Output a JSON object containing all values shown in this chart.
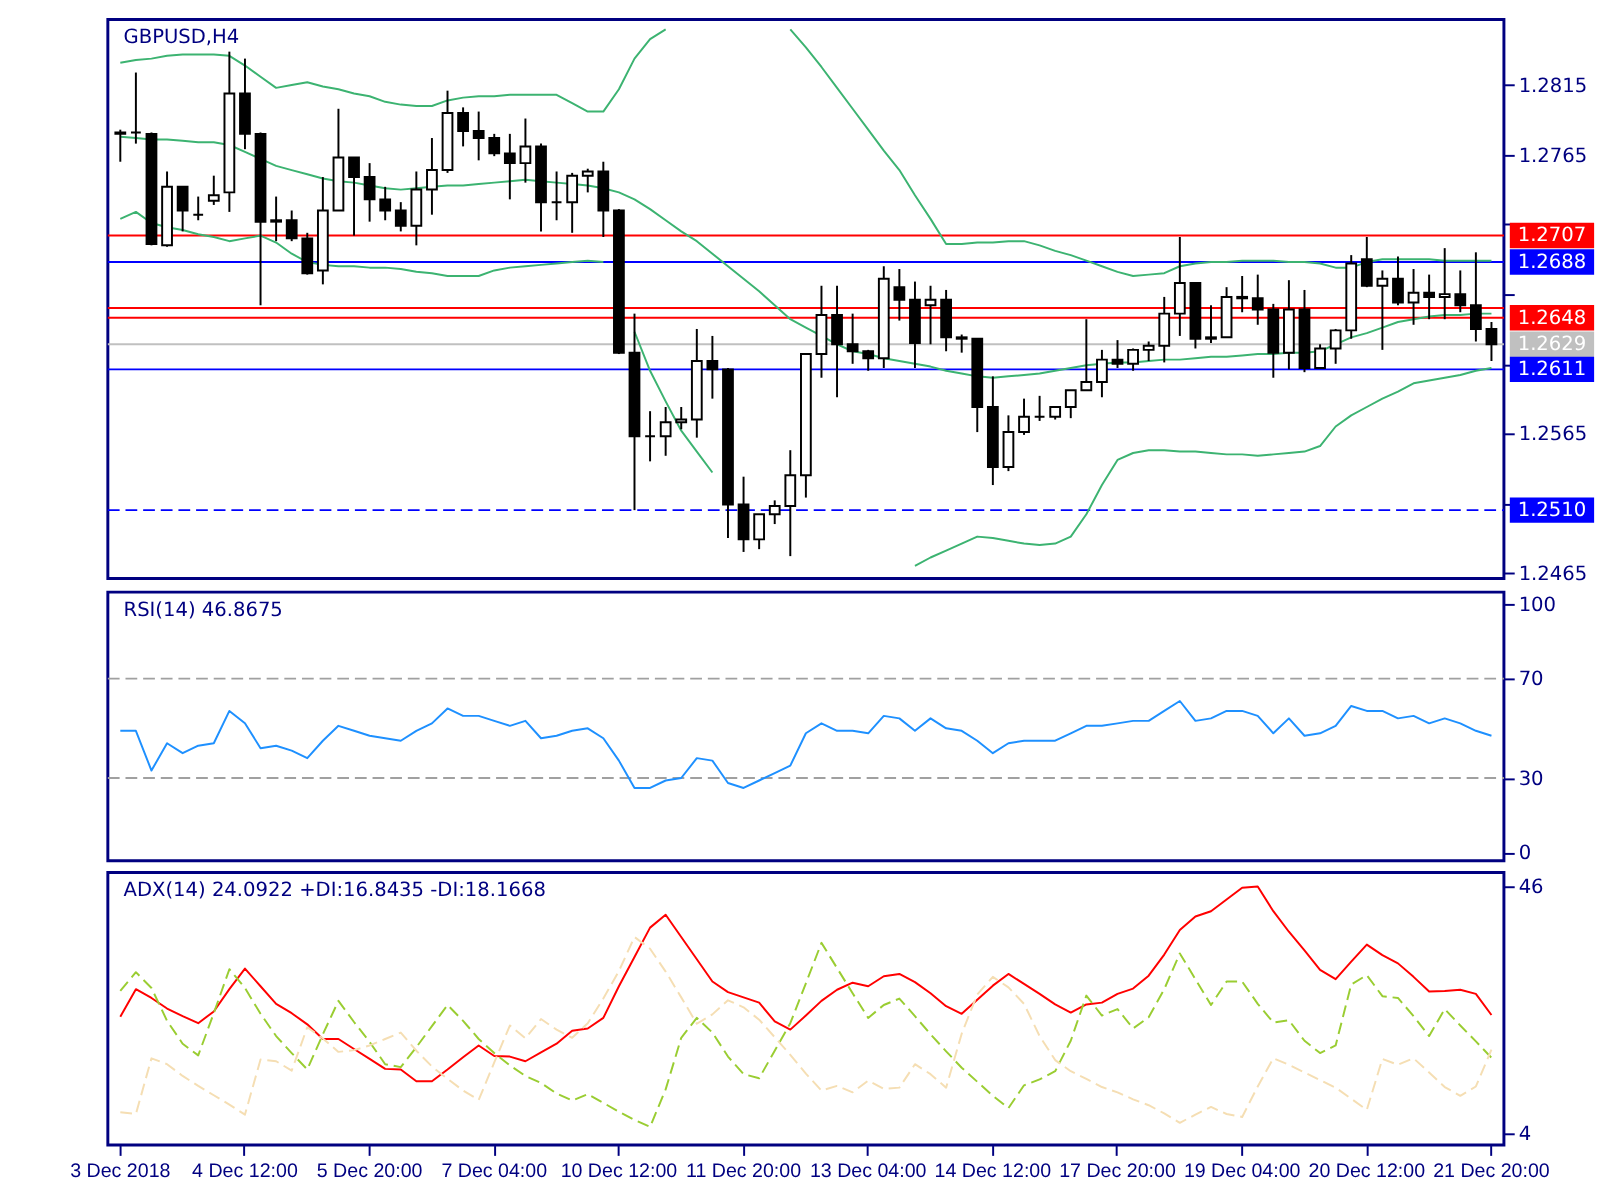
{
  "chart_data": [
    {
      "type": "candlestick",
      "title": "GBPUSD,H4",
      "categories": [
        null,
        null,
        null,
        null,
        null,
        null,
        null,
        null,
        null,
        null,
        null,
        null,
        null,
        null,
        null,
        null,
        null,
        null,
        null,
        null,
        null,
        null,
        null,
        null,
        null,
        null,
        null,
        null,
        null,
        null,
        null,
        null,
        null,
        null,
        null,
        null,
        null,
        null,
        null,
        null,
        null,
        null,
        null,
        null,
        null,
        null,
        null,
        null,
        null,
        null,
        null,
        null,
        null,
        null,
        null,
        null,
        null,
        null,
        null,
        null,
        null,
        null,
        null,
        null,
        null,
        null,
        null,
        null,
        null,
        null,
        null,
        null,
        null,
        null,
        null,
        null,
        null,
        null,
        null,
        null,
        null,
        null,
        null,
        null,
        null,
        null,
        null,
        null,
        null
      ],
      "ohlc": [
        [
          1.278,
          1.2783,
          1.276,
          1.2781
        ],
        [
          1.2781,
          1.2824,
          1.2773,
          1.2781
        ],
        [
          1.278,
          1.2781,
          1.27,
          1.2701
        ],
        [
          1.27,
          1.2753,
          1.2699,
          1.2742
        ],
        [
          1.2742,
          1.2742,
          1.271,
          1.2725
        ],
        [
          1.2722,
          1.2735,
          1.2718,
          1.2722
        ],
        [
          1.2732,
          1.275,
          1.2729,
          1.2736
        ],
        [
          1.2738,
          1.2839,
          1.2724,
          1.2809
        ],
        [
          1.2809,
          1.2834,
          1.2769,
          1.278
        ],
        [
          1.278,
          1.2781,
          1.2657,
          1.2717
        ],
        [
          1.2717,
          1.2735,
          1.2703,
          1.2718
        ],
        [
          1.2718,
          1.2725,
          1.2703,
          1.2705
        ],
        [
          1.2705,
          1.2709,
          1.2679,
          1.268
        ],
        [
          1.2682,
          1.2749,
          1.2672,
          1.2725
        ],
        [
          1.2725,
          1.2798,
          1.2725,
          1.2763
        ],
        [
          1.2763,
          1.2763,
          1.2707,
          1.2749
        ],
        [
          1.2749,
          1.2759,
          1.2717,
          1.2733
        ],
        [
          1.2733,
          1.2742,
          1.2718,
          1.2725
        ],
        [
          1.2725,
          1.2731,
          1.271,
          1.2714
        ],
        [
          1.2714,
          1.2753,
          1.27,
          1.274
        ],
        [
          1.274,
          1.2777,
          1.2722,
          1.2754
        ],
        [
          1.2754,
          1.2811,
          1.2752,
          1.2795
        ],
        [
          1.2795,
          1.2799,
          1.2771,
          1.2782
        ],
        [
          1.2782,
          1.2796,
          1.2761,
          1.2777
        ],
        [
          1.2777,
          1.278,
          1.2764,
          1.2766
        ],
        [
          1.2766,
          1.278,
          1.2733,
          1.2759
        ],
        [
          1.2759,
          1.2791,
          1.2745,
          1.2771
        ],
        [
          1.2771,
          1.2773,
          1.271,
          1.2731
        ],
        [
          1.2731,
          1.2753,
          1.2718,
          1.2731
        ],
        [
          1.2731,
          1.2752,
          1.2709,
          1.275
        ],
        [
          1.275,
          1.2755,
          1.2738,
          1.2753
        ],
        [
          1.2753,
          1.276,
          1.2706,
          1.2725
        ],
        [
          1.2725,
          1.2726,
          1.2622,
          1.2623
        ],
        [
          1.2623,
          1.2651,
          1.251,
          1.2563
        ],
        [
          1.2563,
          1.2581,
          1.2545,
          1.2563
        ],
        [
          1.2563,
          1.2584,
          1.2549,
          1.2573
        ],
        [
          1.2573,
          1.2584,
          1.2568,
          1.2575
        ],
        [
          1.2575,
          1.264,
          1.2562,
          1.2617
        ],
        [
          1.2617,
          1.2635,
          1.259,
          1.2611
        ],
        [
          1.2611,
          1.2612,
          1.249,
          1.2514
        ],
        [
          1.2514,
          1.2534,
          1.248,
          1.2489
        ],
        [
          1.2489,
          1.2507,
          1.2482,
          1.2507
        ],
        [
          1.2507,
          1.2517,
          1.25,
          1.2513
        ],
        [
          1.2513,
          1.2553,
          1.2477,
          1.2535
        ],
        [
          1.2535,
          1.2622,
          1.2519,
          1.2622
        ],
        [
          1.2622,
          1.2671,
          1.2605,
          1.265
        ],
        [
          1.265,
          1.2671,
          1.2591,
          1.2629
        ],
        [
          1.2629,
          1.2651,
          1.2615,
          1.2624
        ],
        [
          1.2624,
          1.2625,
          1.261,
          1.2619
        ],
        [
          1.2619,
          1.2685,
          1.2612,
          1.2676
        ],
        [
          1.267,
          1.2683,
          1.2646,
          1.2661
        ],
        [
          1.2661,
          1.2674,
          1.2612,
          1.263
        ],
        [
          1.2657,
          1.2671,
          1.2629,
          1.2661
        ],
        [
          1.2661,
          1.2668,
          1.2624,
          1.2634
        ],
        [
          1.2634,
          1.2636,
          1.2623,
          1.2633
        ],
        [
          1.2633,
          1.2633,
          1.2566,
          1.2584
        ],
        [
          1.2584,
          1.2606,
          1.2528,
          1.2541
        ],
        [
          1.2541,
          1.2578,
          1.2538,
          1.2566
        ],
        [
          1.2566,
          1.259,
          1.2564,
          1.2577
        ],
        [
          1.2577,
          1.2592,
          1.2574,
          1.2577
        ],
        [
          1.2577,
          1.2584,
          1.2575,
          1.2584
        ],
        [
          1.2584,
          1.2596,
          1.2576,
          1.2596
        ],
        [
          1.2596,
          1.2647,
          1.2596,
          1.2602
        ],
        [
          1.2602,
          1.2625,
          1.2591,
          1.2618
        ],
        [
          1.2618,
          1.2632,
          1.2612,
          1.2615
        ],
        [
          1.2615,
          1.2626,
          1.261,
          1.2625
        ],
        [
          1.2625,
          1.2631,
          1.2617,
          1.2628
        ],
        [
          1.2628,
          1.2663,
          1.2616,
          1.2651
        ],
        [
          1.2651,
          1.2706,
          1.2635,
          1.2673
        ],
        [
          1.2673,
          1.2673,
          1.2626,
          1.2633
        ],
        [
          1.2633,
          1.2657,
          1.263,
          1.2634
        ],
        [
          1.2634,
          1.267,
          1.2634,
          1.2663
        ],
        [
          1.2663,
          1.2678,
          1.2652,
          1.2662
        ],
        [
          1.2662,
          1.2679,
          1.2643,
          1.2654
        ],
        [
          1.2654,
          1.2658,
          1.2605,
          1.2623
        ],
        [
          1.2623,
          1.2675,
          1.2611,
          1.2654
        ],
        [
          1.2654,
          1.2668,
          1.2609,
          1.2612
        ],
        [
          1.2612,
          1.2629,
          1.2612,
          1.2626
        ],
        [
          1.2626,
          1.264,
          1.2615,
          1.2639
        ],
        [
          1.2639,
          1.2693,
          1.2633,
          1.2687
        ],
        [
          1.269,
          1.2706,
          1.267,
          1.2671
        ],
        [
          1.2671,
          1.2682,
          1.2625,
          1.2676
        ],
        [
          1.2676,
          1.2692,
          1.2657,
          1.2659
        ],
        [
          1.2659,
          1.2683,
          1.2643,
          1.2666
        ],
        [
          1.2666,
          1.2679,
          1.2647,
          1.2663
        ],
        [
          1.2663,
          1.2698,
          1.2647,
          1.2665
        ],
        [
          1.2665,
          1.2682,
          1.2652,
          1.2657
        ],
        [
          1.2657,
          1.2695,
          1.2631,
          1.264
        ],
        [
          1.264,
          1.2645,
          1.2617,
          1.2629
        ]
      ],
      "color": "#000000",
      "series": [
        {
          "type": "line",
          "color": "#3cb371",
          "values": [
            1.2831,
            1.2833,
            1.2834,
            1.2836,
            1.2837,
            1.2837,
            1.2837,
            1.2836,
            1.2829,
            1.2821,
            1.2813,
            1.2815,
            1.2817,
            1.2814,
            1.2812,
            1.2809,
            1.2807,
            1.2803,
            1.2801,
            1.28,
            1.28,
            1.2804,
            1.2806,
            1.2807,
            1.2807,
            1.2808,
            1.2808,
            1.2808,
            1.2808,
            1.2802,
            1.2796,
            1.2796,
            1.2812,
            1.2834,
            1.2848,
            1.2855,
            null,
            null,
            null,
            null,
            null,
            null,
            null,
            1.2855,
            1.2842,
            1.2828,
            1.2813,
            1.2798,
            1.2783,
            1.2768,
            1.2754,
            1.2736,
            1.2719,
            1.2701,
            1.2701,
            1.2702,
            1.2702,
            1.2703,
            1.2703,
            1.27,
            1.2696,
            1.2693,
            1.2689,
            1.2685,
            1.2681,
            1.2678,
            1.2679,
            1.268,
            1.2685,
            1.2687,
            1.2688,
            1.2688,
            1.2689,
            1.2689,
            1.2689,
            1.2688,
            1.2688,
            1.2687,
            1.2684,
            1.2684,
            1.2688,
            1.269,
            1.269,
            1.269,
            1.269,
            1.2689,
            1.2689,
            1.2689,
            1.2689
          ]
        },
        {
          "type": "line",
          "color": "#3cb371",
          "values": [
            1.2778,
            1.2777,
            1.2776,
            1.2776,
            1.2775,
            1.2774,
            1.2774,
            1.2772,
            1.2767,
            1.2762,
            1.2757,
            1.2754,
            1.2751,
            1.2748,
            1.2746,
            1.2745,
            1.2743,
            1.2741,
            1.274,
            1.2741,
            1.2742,
            1.2743,
            1.2743,
            1.2744,
            1.2745,
            1.2746,
            1.2747,
            1.2746,
            1.2745,
            1.2744,
            1.2743,
            1.2741,
            1.2738,
            1.2733,
            1.2726,
            1.2718,
            1.271,
            1.2703,
            1.2694,
            1.2685,
            1.2676,
            1.2667,
            1.2657,
            1.2647,
            1.2641,
            1.2635,
            1.2629,
            1.2624,
            1.2622,
            1.2619,
            1.2617,
            1.2615,
            1.2613,
            1.261,
            1.2608,
            1.2606,
            1.2605,
            1.2606,
            1.2607,
            1.2608,
            1.261,
            1.2612,
            1.2614,
            1.2615,
            1.2616,
            1.2616,
            1.2617,
            1.2618,
            1.2618,
            1.2619,
            1.262,
            1.262,
            1.2621,
            1.2622,
            1.2622,
            1.2623,
            1.2623,
            1.2624,
            1.2629,
            1.2634,
            1.2637,
            1.2641,
            1.2645,
            1.2647,
            1.2649,
            1.265,
            1.265,
            1.2651,
            1.2651
          ]
        },
        {
          "type": "line",
          "color": "#3cb371",
          "values": [
            1.2719,
            1.2724,
            1.2716,
            1.2713,
            1.2711,
            1.2708,
            1.2706,
            1.2703,
            1.2705,
            1.2707,
            1.2702,
            1.2694,
            1.2688,
            1.2686,
            1.2685,
            1.2685,
            1.2684,
            1.2684,
            1.2683,
            1.2681,
            1.268,
            1.2678,
            1.2678,
            1.2678,
            1.2682,
            1.2684,
            1.2685,
            1.2686,
            1.2687,
            1.2688,
            1.2689,
            1.2688,
            null,
            1.2638,
            1.261,
            1.2588,
            1.2567,
            1.2552,
            1.2537,
            null,
            null,
            null,
            null,
            null,
            null,
            null,
            null,
            null,
            null,
            null,
            null,
            1.247,
            1.2476,
            1.2481,
            1.2486,
            1.2491,
            1.249,
            1.2488,
            1.2486,
            1.2485,
            1.2486,
            1.2491,
            1.2507,
            1.2528,
            1.2546,
            1.2551,
            1.2553,
            1.2553,
            1.2552,
            1.2552,
            1.2551,
            1.255,
            1.255,
            1.2549,
            1.255,
            1.2551,
            1.2552,
            1.2556,
            1.257,
            1.2578,
            1.2584,
            1.259,
            1.2595,
            1.2601,
            1.2603,
            1.2605,
            1.2607,
            1.261,
            1.2612
          ]
        }
      ],
      "ylim": [
        1.2461,
        1.2862
      ],
      "yticks": [
        1.2815,
        1.2765,
        {
          "value": 1.2715,
          "label": null
        },
        {
          "value": 1.2665,
          "label": null
        },
        {
          "value": 1.2615,
          "label": null
        },
        1.2565,
        {
          "value": 1.2515,
          "label": null
        },
        1.2465
      ],
      "ref_lines": [
        {
          "axis": "y",
          "value": 1.2707,
          "label": "1.2707",
          "color": "#ff0000"
        },
        {
          "axis": "y",
          "value": 1.2688,
          "label": "1.2688",
          "color": "#0000ff"
        },
        {
          "axis": "y",
          "value": 1.2655,
          "color": "#ff0000"
        },
        {
          "axis": "y",
          "value": 1.2648,
          "label": "1.2648",
          "color": "#ff0000"
        },
        {
          "axis": "y",
          "value": 1.2629,
          "label": "1.2629",
          "color": "#c0c0c0"
        },
        {
          "axis": "y",
          "value": 1.2611,
          "label": "1.2611",
          "color": "#0000ff"
        },
        {
          "axis": "y",
          "value": 1.251,
          "label": "1.2510",
          "color": "#0000ff",
          "line_style": "dashed"
        }
      ]
    },
    {
      "type": "line",
      "title": "RSI(14) 46.8675",
      "categories": [
        null,
        null,
        null,
        null,
        null,
        null,
        null,
        null,
        null,
        null,
        null,
        null,
        null,
        null,
        null,
        null,
        null,
        null,
        null,
        null,
        null,
        null,
        null,
        null,
        null,
        null,
        null,
        null,
        null,
        null,
        null,
        null,
        null,
        null,
        null,
        null,
        null,
        null,
        null,
        null,
        null,
        null,
        null,
        null,
        null,
        null,
        null,
        null,
        null,
        null,
        null,
        null,
        null,
        null,
        null,
        null,
        null,
        null,
        null,
        null,
        null,
        null,
        null,
        null,
        null,
        null,
        null,
        null,
        null,
        null,
        null,
        null,
        null,
        null,
        null,
        null,
        null,
        null,
        null,
        null,
        null,
        null,
        null,
        null,
        null,
        null,
        null,
        null,
        null
      ],
      "series": [
        {
          "color": "#1e90ff",
          "values": [
            49,
            49,
            33,
            44,
            40,
            43,
            44,
            57,
            52,
            42,
            43,
            41,
            38,
            45,
            51,
            49,
            47,
            46,
            45,
            49,
            52,
            58,
            55,
            55,
            53,
            51,
            53,
            46,
            47,
            49,
            50,
            46,
            37,
            26,
            26,
            29,
            30,
            38,
            37,
            28,
            26,
            29,
            32,
            35,
            48,
            52,
            49,
            49,
            48,
            55,
            54,
            49,
            54,
            50,
            49,
            45,
            40,
            44,
            45,
            45,
            45,
            48,
            51,
            51,
            52,
            53,
            53,
            57,
            61,
            53,
            54,
            57,
            57,
            55,
            48,
            54,
            47,
            48,
            51,
            59,
            57,
            57,
            54,
            55,
            52,
            54,
            52,
            49,
            47
          ]
        }
      ],
      "ylim": [
        -3.3,
        104.8
      ],
      "yticks": [
        0,
        30,
        70,
        100
      ],
      "ref_lines": [
        {
          "axis": "y",
          "value": 70,
          "color": "#a0a0a0",
          "line_style": "dashed"
        },
        {
          "axis": "y",
          "value": 30,
          "color": "#a0a0a0",
          "line_style": "dashed"
        }
      ]
    },
    {
      "type": "line",
      "title": "ADX(14) 24.0922 +DI:16.8435 -DI:18.1668",
      "categories": [
        "3 Dec 2018",
        null,
        null,
        null,
        null,
        null,
        null,
        null,
        "4 Dec 12:00",
        null,
        null,
        null,
        null,
        null,
        null,
        null,
        "5 Dec 20:00",
        null,
        null,
        null,
        null,
        null,
        null,
        null,
        "7 Dec 04:00",
        null,
        null,
        null,
        null,
        null,
        null,
        null,
        "10 Dec 12:00",
        null,
        null,
        null,
        null,
        null,
        null,
        null,
        "11 Dec 20:00",
        null,
        null,
        null,
        null,
        null,
        null,
        null,
        "13 Dec 04:00",
        null,
        null,
        null,
        null,
        null,
        null,
        null,
        "14 Dec 12:00",
        null,
        null,
        null,
        null,
        null,
        null,
        null,
        "17 Dec 20:00",
        null,
        null,
        null,
        null,
        null,
        null,
        null,
        "19 Dec 04:00",
        null,
        null,
        null,
        null,
        null,
        null,
        null,
        "20 Dec 12:00",
        null,
        null,
        null,
        null,
        null,
        null,
        null,
        "21 Dec 20:00"
      ],
      "series": [
        {
          "color": "#ff0000",
          "values": [
            23.8,
            28.5,
            27.0,
            25.2,
            23.9,
            22.7,
            24.7,
            28.5,
            32.0,
            29.0,
            26.0,
            24.4,
            22.5,
            20.0,
            20.0,
            18.3,
            16.6,
            14.9,
            14.8,
            12.8,
            12.8,
            14.8,
            16.9,
            18.9,
            17.1,
            17.0,
            16.2,
            17.7,
            19.2,
            21.4,
            21.8,
            23.6,
            29.0,
            34.0,
            39.0,
            41.2,
            37.4,
            33.6,
            29.8,
            28.0,
            27.1,
            26.2,
            23.0,
            21.6,
            24.0,
            26.5,
            28.4,
            29.6,
            29.0,
            30.7,
            31.1,
            29.7,
            27.8,
            25.6,
            24.3,
            26.7,
            29.1,
            31.1,
            29.4,
            27.7,
            25.9,
            24.5,
            25.9,
            26.2,
            27.7,
            28.6,
            30.8,
            34.4,
            38.6,
            40.9,
            41.8,
            43.8,
            45.8,
            46.0,
            41.8,
            38.3,
            35.1,
            31.8,
            30.2,
            33.2,
            36.1,
            34.3,
            32.9,
            30.6,
            28.1,
            28.2,
            28.4,
            27.7,
            24.1
          ]
        },
        {
          "color": "#9acd32",
          "line_style": "dashed",
          "values": [
            28.2,
            31.4,
            28.7,
            23.1,
            19.2,
            17.2,
            24.4,
            31.9,
            28.7,
            24.3,
            20.5,
            17.6,
            14.8,
            20.8,
            26.5,
            22.9,
            19.5,
            15.7,
            15.2,
            18.6,
            22.2,
            25.8,
            23.1,
            20.0,
            17.6,
            15.5,
            13.7,
            12.5,
            10.7,
            9.5,
            10.6,
            9.1,
            7.6,
            6.2,
            5.0,
            11.4,
            20.2,
            23.6,
            21.1,
            17.0,
            14.0,
            13.3,
            18.0,
            22.7,
            29.5,
            36.4,
            32.1,
            27.8,
            23.6,
            25.8,
            26.9,
            23.9,
            20.8,
            17.9,
            15.1,
            12.7,
            10.3,
            8.2,
            12.1,
            13.1,
            14.5,
            19.7,
            27.4,
            24.0,
            25.1,
            21.8,
            23.7,
            28.5,
            34.6,
            30.2,
            25.8,
            29.8,
            29.8,
            26.0,
            22.8,
            23.2,
            19.7,
            17.6,
            18.9,
            29.3,
            30.9,
            27.3,
            27.0,
            23.9,
            20.5,
            25.1,
            22.3,
            19.6,
            16.8
          ]
        },
        {
          "color": "#f5deb3",
          "line_style": "dashed",
          "values": [
            7.5,
            7.2,
            16.7,
            15.7,
            13.7,
            12.0,
            10.4,
            8.8,
            7.1,
            16.5,
            16.2,
            14.6,
            22.0,
            20.1,
            17.8,
            18.1,
            18.9,
            20.0,
            21.1,
            18.0,
            15.3,
            13.2,
            11.2,
            9.6,
            16.0,
            22.3,
            20.1,
            23.4,
            21.6,
            20.2,
            22.7,
            26.9,
            31.6,
            37.4,
            35.4,
            31.5,
            27.1,
            22.6,
            24.2,
            26.6,
            25.4,
            23.3,
            20.3,
            17.3,
            14.1,
            11.2,
            12.0,
            10.9,
            12.9,
            11.5,
            11.7,
            15.7,
            14.0,
            11.7,
            20.9,
            27.6,
            30.6,
            28.8,
            26.0,
            20.5,
            16.4,
            14.5,
            13.2,
            11.8,
            10.9,
            9.7,
            8.7,
            7.3,
            5.7,
            7.1,
            8.4,
            7.2,
            6.7,
            11.9,
            16.7,
            15.6,
            14.3,
            13.0,
            11.7,
            9.8,
            7.9,
            16.6,
            15.6,
            16.7,
            14.3,
            11.8,
            10.3,
            11.9,
            18.2
          ]
        }
      ],
      "ylim": [
        1.9,
        48.4
      ],
      "yticks": [
        4,
        46
      ]
    }
  ]
}
